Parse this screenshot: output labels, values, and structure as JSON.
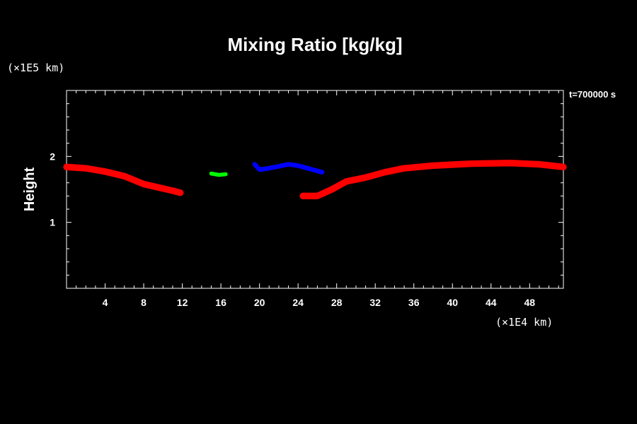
{
  "chart_data": {
    "type": "line",
    "title": "Mixing Ratio [kg/kg]",
    "time_label": "t=700000 s",
    "ylabel": "Height",
    "y_unit": "(×1E5 km)",
    "x_unit": "(×1E4 km)",
    "xlim": [
      0,
      51.5
    ],
    "ylim": [
      0,
      3
    ],
    "x_ticks": [
      4,
      8,
      12,
      16,
      20,
      24,
      28,
      32,
      36,
      40,
      44,
      48
    ],
    "y_ticks": [
      1,
      2
    ],
    "grid": false,
    "series": [
      {
        "color": "#ff0000",
        "width": 0.1,
        "points": [
          [
            0,
            1.84
          ],
          [
            2,
            1.82
          ],
          [
            4,
            1.77
          ],
          [
            6,
            1.7
          ],
          [
            8,
            1.58
          ],
          [
            9.5,
            1.53
          ],
          [
            11,
            1.48
          ],
          [
            11.8,
            1.45
          ]
        ]
      },
      {
        "color": "#ff0000",
        "width": 0.1,
        "points": [
          [
            24.5,
            1.4
          ],
          [
            26,
            1.4
          ],
          [
            27.5,
            1.5
          ],
          [
            29,
            1.62
          ],
          [
            31,
            1.68
          ],
          [
            33,
            1.76
          ],
          [
            35,
            1.82
          ],
          [
            38,
            1.86
          ],
          [
            42,
            1.89
          ],
          [
            46,
            1.9
          ],
          [
            49,
            1.88
          ],
          [
            51.5,
            1.84
          ]
        ]
      },
      {
        "color": "#00ff00",
        "width": 0.06,
        "points": [
          [
            15,
            1.74
          ],
          [
            15.8,
            1.72
          ],
          [
            16.5,
            1.73
          ]
        ]
      },
      {
        "color": "#0000ff",
        "width": 0.07,
        "points": [
          [
            19.5,
            1.88
          ],
          [
            20,
            1.8
          ],
          [
            21,
            1.82
          ],
          [
            22,
            1.85
          ],
          [
            23,
            1.88
          ],
          [
            24,
            1.86
          ],
          [
            25.5,
            1.8
          ],
          [
            26.5,
            1.76
          ]
        ]
      }
    ]
  }
}
